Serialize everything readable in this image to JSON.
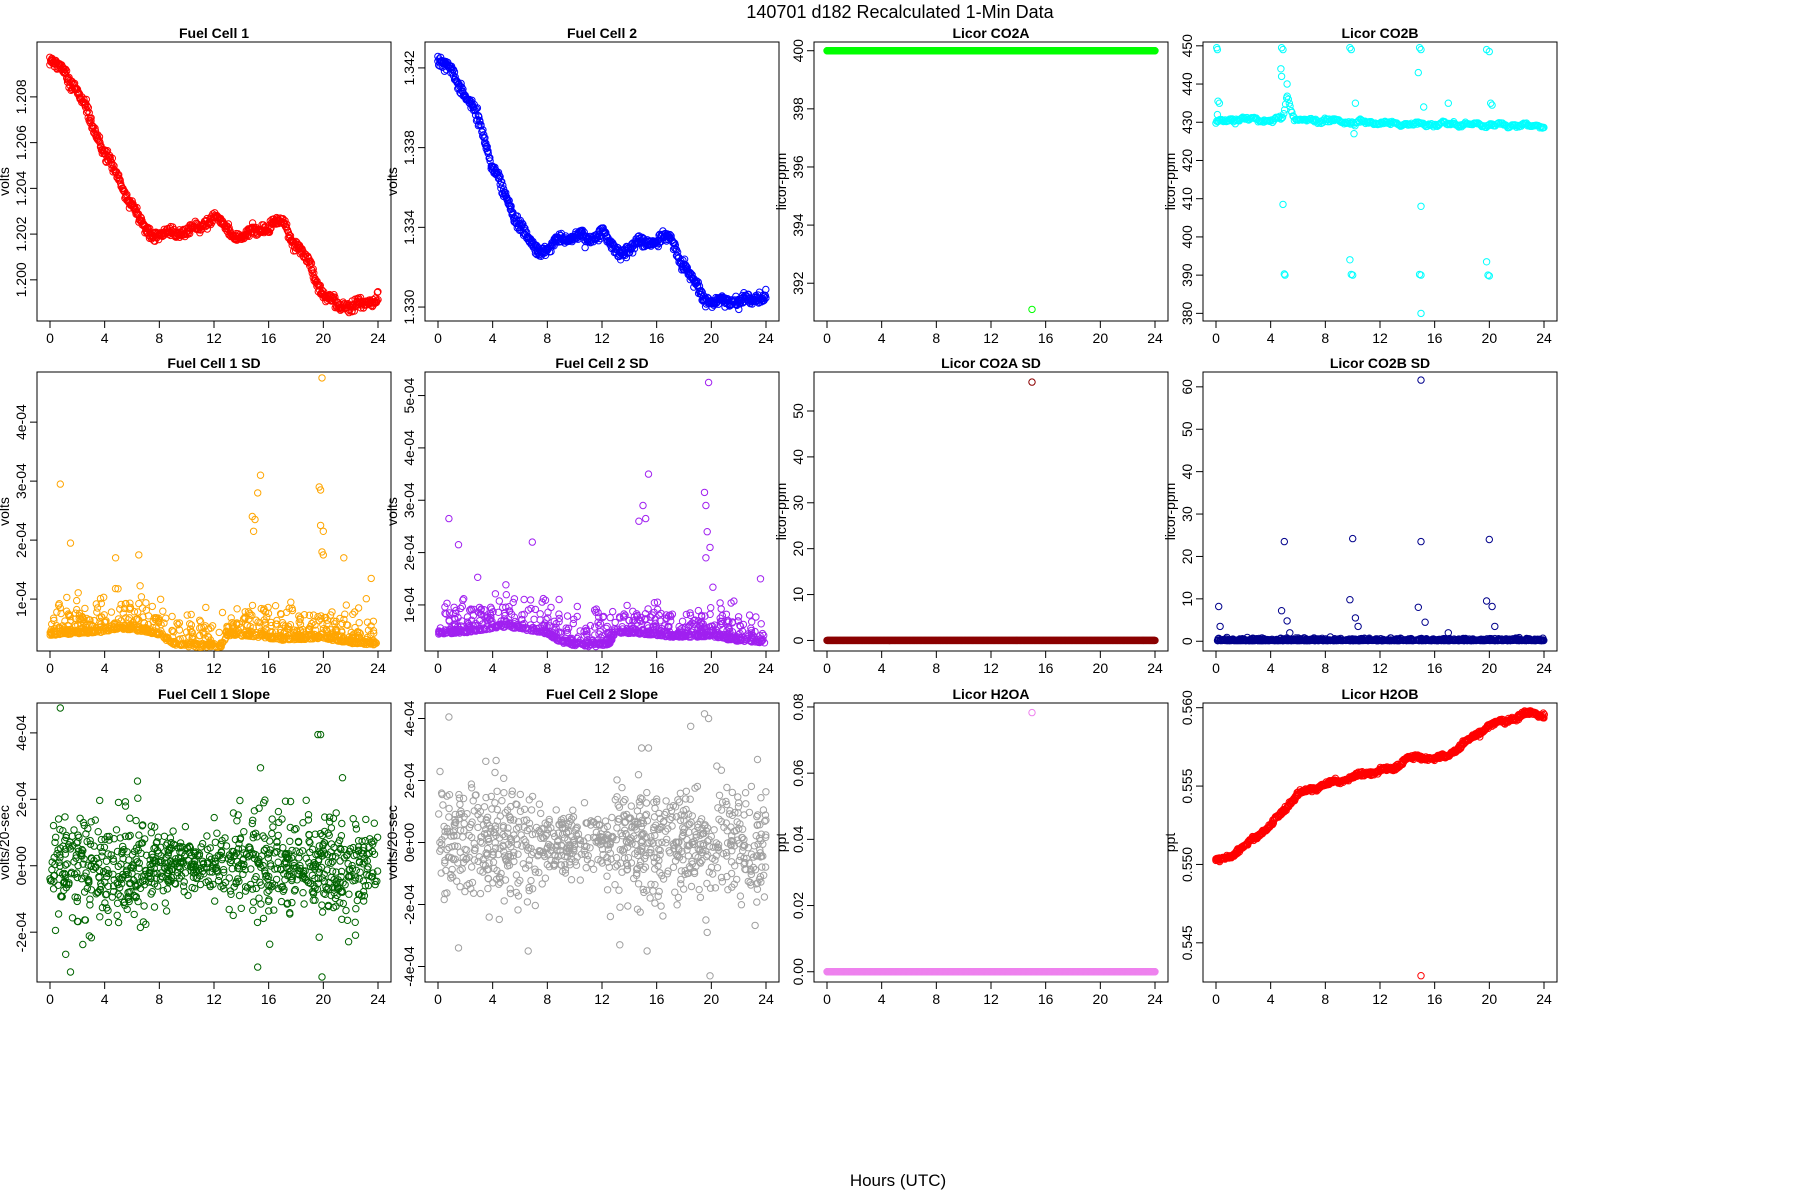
{
  "title": "140701   d182   Recalculated 1-Min Data",
  "outer_xlabel": "Hours (UTC)",
  "chart_data": [
    {
      "type": "scatter",
      "title": "Fuel Cell 1",
      "xlabel": "",
      "ylabel": "volts",
      "color": "#ff0000",
      "xlim": [
        0,
        24
      ],
      "xticks": [
        "0",
        "4",
        "8",
        "12",
        "16",
        "20",
        "24"
      ],
      "ylim": [
        1.1982,
        1.2104
      ],
      "yticks": [
        1.2,
        1.202,
        1.204,
        1.206,
        1.208
      ],
      "ytick_labels": [
        "1.200",
        "1.202",
        "1.204",
        "1.206",
        "1.208"
      ],
      "gen": {
        "kind": "walk",
        "x": [
          0,
          1,
          2,
          3,
          4,
          5,
          6,
          7,
          8,
          9,
          10,
          11,
          12,
          13,
          14,
          15,
          16,
          17,
          18,
          19,
          20,
          21,
          22,
          23,
          24
        ],
        "y": [
          1.2095,
          1.2092,
          1.2082,
          1.207,
          1.2055,
          1.2045,
          1.2032,
          1.2022,
          1.2019,
          1.2021,
          1.2021,
          1.2023,
          1.2028,
          1.2022,
          1.2018,
          1.2022,
          1.2023,
          1.2026,
          1.2015,
          1.2007,
          1.1993,
          1.1989,
          1.1989,
          1.1989,
          1.1993
        ],
        "noise": 0.00025,
        "layers": 2,
        "seed": 11
      }
    },
    {
      "type": "scatter",
      "title": "Fuel Cell 2",
      "xlabel": "",
      "ylabel": "volts",
      "color": "#0000ff",
      "xlim": [
        0,
        24
      ],
      "xticks": [
        "0",
        "4",
        "8",
        "12",
        "16",
        "20",
        "24"
      ],
      "ylim": [
        1.3293,
        1.3433
      ],
      "yticks": [
        1.33,
        1.334,
        1.338,
        1.342
      ],
      "ytick_labels": [
        "1.330",
        "1.334",
        "1.338",
        "1.342"
      ],
      "gen": {
        "kind": "walk",
        "x": [
          0,
          1,
          2,
          3,
          4,
          5,
          6,
          7,
          8,
          9,
          10,
          11,
          12,
          13,
          14,
          15,
          16,
          17,
          18,
          19,
          20,
          21,
          22,
          23,
          24
        ],
        "y": [
          1.3422,
          1.342,
          1.3405,
          1.3395,
          1.337,
          1.3355,
          1.334,
          1.333,
          1.3328,
          1.3335,
          1.3335,
          1.3334,
          1.3338,
          1.3328,
          1.3329,
          1.3333,
          1.3333,
          1.3335,
          1.332,
          1.3309,
          1.3302,
          1.3303,
          1.3303,
          1.3303,
          1.3307
        ],
        "noise": 0.0003,
        "layers": 2,
        "seed": 12
      }
    },
    {
      "type": "scatter",
      "title": "Licor CO2A",
      "xlabel": "",
      "ylabel": "licor-ppm",
      "color": "#00ff00",
      "xlim": [
        0,
        24
      ],
      "xticks": [
        "0",
        "4",
        "8",
        "12",
        "16",
        "20",
        "24"
      ],
      "ylim": [
        390.7,
        400.3
      ],
      "yticks": [
        392,
        394,
        396,
        398,
        400
      ],
      "ytick_labels": [
        "392",
        "394",
        "396",
        "398",
        "400"
      ],
      "gen": {
        "kind": "const",
        "value": 400,
        "noise": 0,
        "density": 1.2,
        "seed": 13
      },
      "outliers": [
        [
          15.0,
          391.1
        ]
      ]
    },
    {
      "type": "scatter",
      "title": "Licor CO2B",
      "xlabel": "",
      "ylabel": "licor-ppm",
      "color": "#00ffff",
      "xlim": [
        0,
        24
      ],
      "xticks": [
        "0",
        "4",
        "8",
        "12",
        "16",
        "20",
        "24"
      ],
      "ylim": [
        378,
        451
      ],
      "yticks": [
        380,
        390,
        400,
        410,
        420,
        430,
        440,
        450
      ],
      "ytick_labels": [
        "380",
        "390",
        "400",
        "410",
        "420",
        "430",
        "440",
        "450"
      ],
      "gen": {
        "kind": "walk",
        "x": [
          0,
          2,
          4,
          4.9,
          5.2,
          5.6,
          6,
          8,
          10,
          12,
          14,
          16,
          18,
          20,
          22,
          24
        ],
        "y": [
          430,
          431,
          430.5,
          431,
          437,
          432,
          430.5,
          430.5,
          430,
          429.8,
          429.5,
          429.5,
          429.5,
          429.3,
          429.2,
          429.1
        ],
        "noise": 0.6,
        "layers": 1,
        "seed": 14
      },
      "outliers": [
        [
          0.05,
          449.5
        ],
        [
          0.1,
          449
        ],
        [
          0.15,
          435.5
        ],
        [
          0.25,
          435
        ],
        [
          0.1,
          432
        ],
        [
          4.8,
          449.5
        ],
        [
          4.9,
          449
        ],
        [
          4.75,
          444
        ],
        [
          4.8,
          442
        ],
        [
          4.9,
          408.5
        ],
        [
          5.0,
          390.3
        ],
        [
          5.05,
          390
        ],
        [
          5.2,
          440
        ],
        [
          9.8,
          449.5
        ],
        [
          9.9,
          449
        ],
        [
          9.8,
          394
        ],
        [
          9.9,
          390.2
        ],
        [
          10.0,
          390
        ],
        [
          10.2,
          435
        ],
        [
          10.1,
          427
        ],
        [
          14.9,
          449.5
        ],
        [
          15.0,
          449
        ],
        [
          14.8,
          443
        ],
        [
          15.0,
          408
        ],
        [
          14.9,
          390.2
        ],
        [
          15.0,
          390
        ],
        [
          15.0,
          380
        ],
        [
          15.2,
          434
        ],
        [
          17.0,
          435
        ],
        [
          19.8,
          449
        ],
        [
          20.0,
          448.5
        ],
        [
          19.8,
          393.5
        ],
        [
          19.9,
          390
        ],
        [
          20.0,
          389.8
        ],
        [
          20.1,
          435
        ],
        [
          20.2,
          434.5
        ]
      ]
    },
    {
      "type": "scatter",
      "title": "Fuel Cell 1 SD",
      "xlabel": "",
      "ylabel": "volts",
      "color": "#ffa500",
      "xlim": [
        0,
        24
      ],
      "xticks": [
        "0",
        "4",
        "8",
        "12",
        "16",
        "20",
        "24"
      ],
      "ylim": [
        1.2e-05,
        0.000485
      ],
      "yticks": [
        0.0001,
        0.0002,
        0.0003,
        0.0004
      ],
      "ytick_labels": [
        "1e-04",
        "2e-04",
        "3e-04",
        "4e-04"
      ],
      "gen": {
        "kind": "noise",
        "x": [
          0,
          2,
          4,
          5,
          7,
          8,
          9,
          10,
          11,
          12,
          12.5,
          13,
          15,
          17,
          20,
          22,
          24
        ],
        "y": [
          7e-05,
          7.5e-05,
          8e-05,
          9e-05,
          8e-05,
          7e-05,
          4e-05,
          3.5e-05,
          3e-05,
          2.8e-05,
          3e-05,
          7e-05,
          6.5e-05,
          5.5e-05,
          6e-05,
          4.5e-05,
          4e-05
        ],
        "noise": 2.5e-05,
        "floor": 1.8e-05,
        "density": 1.3,
        "seed": 15
      },
      "outliers": [
        [
          0.75,
          0.000295
        ],
        [
          1.5,
          0.000195
        ],
        [
          4.8,
          0.00017
        ],
        [
          6.5,
          0.000175
        ],
        [
          14.8,
          0.00024
        ],
        [
          15.0,
          0.000235
        ],
        [
          15.4,
          0.00031
        ],
        [
          15.2,
          0.00028
        ],
        [
          14.9,
          0.000215
        ],
        [
          19.7,
          0.00029
        ],
        [
          19.8,
          0.000285
        ],
        [
          19.9,
          0.000475
        ],
        [
          19.8,
          0.000225
        ],
        [
          20.0,
          0.000215
        ],
        [
          19.9,
          0.00018
        ],
        [
          20.0,
          0.000175
        ],
        [
          21.5,
          0.00017
        ],
        [
          23.5,
          0.000135
        ]
      ]
    },
    {
      "type": "scatter",
      "title": "Fuel Cell 2 SD",
      "xlabel": "",
      "ylabel": "volts",
      "color": "#a020f0",
      "xlim": [
        0,
        24
      ],
      "xticks": [
        "0",
        "4",
        "8",
        "12",
        "16",
        "20",
        "24"
      ],
      "ylim": [
        1.2e-05,
        0.000545
      ],
      "yticks": [
        0.0001,
        0.0002,
        0.0003,
        0.0004,
        0.0005
      ],
      "ytick_labels": [
        "1e-04",
        "2e-04",
        "3e-04",
        "4e-04",
        "5e-04"
      ],
      "gen": {
        "kind": "noise",
        "x": [
          0,
          2,
          4,
          5,
          7,
          8,
          9,
          10,
          11,
          12,
          12.5,
          13,
          15,
          17,
          20,
          22,
          24
        ],
        "y": [
          8e-05,
          8.5e-05,
          0.0001,
          0.000105,
          9e-05,
          8e-05,
          5e-05,
          4e-05,
          3.5e-05,
          3.5e-05,
          4e-05,
          8.5e-05,
          8e-05,
          7e-05,
          7e-05,
          5.5e-05,
          5e-05
        ],
        "noise": 3e-05,
        "floor": 2e-05,
        "density": 1.3,
        "seed": 16
      },
      "outliers": [
        [
          0.8,
          0.000265
        ],
        [
          1.5,
          0.000215
        ],
        [
          6.9,
          0.00022
        ],
        [
          14.7,
          0.00026
        ],
        [
          15.0,
          0.00029
        ],
        [
          15.2,
          0.000265
        ],
        [
          15.4,
          0.00035
        ],
        [
          19.5,
          0.000315
        ],
        [
          19.6,
          0.00029
        ],
        [
          19.8,
          0.000525
        ],
        [
          19.7,
          0.00024
        ],
        [
          19.9,
          0.00021
        ],
        [
          19.6,
          0.00019
        ],
        [
          23.6,
          0.00015
        ]
      ]
    },
    {
      "type": "scatter",
      "title": "Licor CO2A SD",
      "xlabel": "",
      "ylabel": "licor-ppm",
      "color": "#8b0000",
      "xlim": [
        0,
        24
      ],
      "xticks": [
        "0",
        "4",
        "8",
        "12",
        "16",
        "20",
        "24"
      ],
      "ylim": [
        -2.3,
        58.5
      ],
      "yticks": [
        0,
        10,
        20,
        30,
        40,
        50
      ],
      "ytick_labels": [
        "0",
        "10",
        "20",
        "30",
        "40",
        "50"
      ],
      "gen": {
        "kind": "const",
        "value": 0,
        "noise": 0,
        "density": 1.2,
        "seed": 17
      },
      "outliers": [
        [
          15.0,
          56.3
        ]
      ]
    },
    {
      "type": "scatter",
      "title": "Licor CO2B SD",
      "xlabel": "",
      "ylabel": "licor-ppm",
      "color": "#00008b",
      "xlim": [
        0,
        24
      ],
      "xticks": [
        "0",
        "4",
        "8",
        "12",
        "16",
        "20",
        "24"
      ],
      "ylim": [
        -2.3,
        63.5
      ],
      "yticks": [
        0,
        10,
        20,
        30,
        40,
        50,
        60
      ],
      "ytick_labels": [
        "0",
        "10",
        "20",
        "30",
        "40",
        "50",
        "60"
      ],
      "gen": {
        "kind": "noise",
        "x": [
          0,
          24
        ],
        "y": [
          0.3,
          0.3
        ],
        "noise": 0.25,
        "floor": 0,
        "density": 1.3,
        "seed": 18
      },
      "outliers": [
        [
          0.2,
          8.2
        ],
        [
          0.3,
          3.5
        ],
        [
          0.8,
          0.9
        ],
        [
          4.8,
          7.2
        ],
        [
          5.0,
          23.5
        ],
        [
          5.2,
          4.8
        ],
        [
          5.4,
          2
        ],
        [
          9.8,
          9.8
        ],
        [
          10.0,
          24.2
        ],
        [
          10.2,
          5.5
        ],
        [
          10.4,
          3.5
        ],
        [
          14.8,
          8
        ],
        [
          15.0,
          23.5
        ],
        [
          15.0,
          61.6
        ],
        [
          15.3,
          4.5
        ],
        [
          17.0,
          2
        ],
        [
          19.8,
          9.5
        ],
        [
          20.0,
          24
        ],
        [
          20.2,
          8.2
        ],
        [
          20.4,
          3.5
        ]
      ]
    },
    {
      "type": "scatter",
      "title": "Fuel Cell 1 Slope",
      "xlabel": "",
      "ylabel": "volts/20-sec",
      "color": "#006400",
      "xlim": [
        0,
        24
      ],
      "xticks": [
        "0",
        "4",
        "8",
        "12",
        "16",
        "20",
        "24"
      ],
      "ylim": [
        -0.00035,
        0.00049
      ],
      "yticks": [
        -0.0002,
        0,
        0.0002,
        0.0004
      ],
      "ytick_labels": [
        "-2e-04",
        "0e+00",
        "2e-04",
        "4e-04"
      ],
      "gen": {
        "kind": "noise",
        "x": [
          0,
          7,
          8,
          12,
          13,
          24
        ],
        "y": [
          0,
          0,
          0,
          0,
          0,
          0
        ],
        "noise_sched": [
          8.5e-05,
          8.5e-05,
          4.5e-05,
          4.5e-05,
          8e-05,
          8e-05
        ],
        "density": 1.3,
        "seed": 19
      },
      "outliers": [
        [
          0.75,
          0.000475
        ],
        [
          1.5,
          -0.00032
        ],
        [
          15.2,
          -0.000305
        ],
        [
          19.6,
          0.000395
        ],
        [
          19.8,
          0.000395
        ],
        [
          19.7,
          -0.000215
        ],
        [
          19.9,
          -0.000335
        ],
        [
          21.4,
          0.000265
        ],
        [
          15.4,
          0.000295
        ],
        [
          6.4,
          0.000255
        ]
      ]
    },
    {
      "type": "scatter",
      "title": "Fuel Cell 2 Slope",
      "xlabel": "",
      "ylabel": "volts/20-sec",
      "color": "#a0a0a0",
      "xlim": [
        0,
        24
      ],
      "xticks": [
        "0",
        "4",
        "8",
        "12",
        "16",
        "20",
        "24"
      ],
      "ylim": [
        -0.00045,
        0.00045
      ],
      "yticks": [
        -0.0004,
        -0.0002,
        0,
        0.0002,
        0.0004
      ],
      "ytick_labels": [
        "-4e-04",
        "-2e-04",
        "0e+00",
        "2e-04",
        "4e-04"
      ],
      "gen": {
        "kind": "noise",
        "x": [
          0,
          7,
          8,
          12,
          13,
          24
        ],
        "y": [
          0,
          0,
          0,
          0,
          0,
          0
        ],
        "noise_sched": [
          0.0001,
          0.0001,
          5e-05,
          5e-05,
          9.5e-05,
          9.5e-05
        ],
        "density": 1.3,
        "seed": 20
      },
      "outliers": [
        [
          0.8,
          0.000405
        ],
        [
          1.5,
          -0.00034
        ],
        [
          6.6,
          -0.00035
        ],
        [
          13.3,
          -0.00033
        ],
        [
          14.9,
          0.000305
        ],
        [
          15.4,
          0.000305
        ],
        [
          15.3,
          -0.00035
        ],
        [
          19.5,
          0.000415
        ],
        [
          19.8,
          0.0004
        ],
        [
          19.7,
          -0.00029
        ],
        [
          19.9,
          -0.00043
        ],
        [
          19.6,
          -0.00025
        ]
      ]
    },
    {
      "type": "scatter",
      "title": "Licor H2OA",
      "xlabel": "",
      "ylabel": "ppt",
      "color": "#ee82ee",
      "xlim": [
        0,
        24
      ],
      "xticks": [
        "0",
        "4",
        "8",
        "12",
        "16",
        "20",
        "24"
      ],
      "ylim": [
        -0.0031,
        0.0812
      ],
      "yticks": [
        0,
        0.02,
        0.04,
        0.06,
        0.08
      ],
      "ytick_labels": [
        "0.00",
        "0.02",
        "0.04",
        "0.06",
        "0.08"
      ],
      "gen": {
        "kind": "const",
        "value": 0,
        "noise": 0,
        "density": 1.2,
        "seed": 21
      },
      "outliers": [
        [
          15.0,
          0.0783
        ]
      ]
    },
    {
      "type": "scatter",
      "title": "Licor H2OB",
      "xlabel": "",
      "ylabel": "ppt",
      "color": "#ff0000",
      "xlim": [
        0,
        24
      ],
      "xticks": [
        "0",
        "4",
        "8",
        "12",
        "16",
        "20",
        "24"
      ],
      "ylim": [
        0.5425,
        0.5603
      ],
      "yticks": [
        0.545,
        0.55,
        0.555,
        0.56
      ],
      "ytick_labels": [
        "0.545",
        "0.550",
        "0.555",
        "0.560"
      ],
      "gen": {
        "kind": "walk",
        "x": [
          0,
          1,
          2,
          3,
          4,
          5,
          6,
          7,
          8,
          9,
          10,
          11,
          12,
          13,
          14,
          15,
          16,
          17,
          18,
          19,
          20,
          21,
          22,
          23,
          24
        ],
        "y": [
          0.5502,
          0.5505,
          0.5511,
          0.5518,
          0.5525,
          0.5535,
          0.5545,
          0.5548,
          0.5551,
          0.5553,
          0.5556,
          0.5558,
          0.556,
          0.5561,
          0.5568,
          0.5568,
          0.5568,
          0.5569,
          0.5577,
          0.5582,
          0.5589,
          0.5591,
          0.5594,
          0.5597,
          0.5595
        ],
        "noise": 0.00015,
        "layers": 2,
        "seed": 22
      },
      "outliers": [
        [
          15.0,
          0.5429
        ]
      ]
    }
  ]
}
